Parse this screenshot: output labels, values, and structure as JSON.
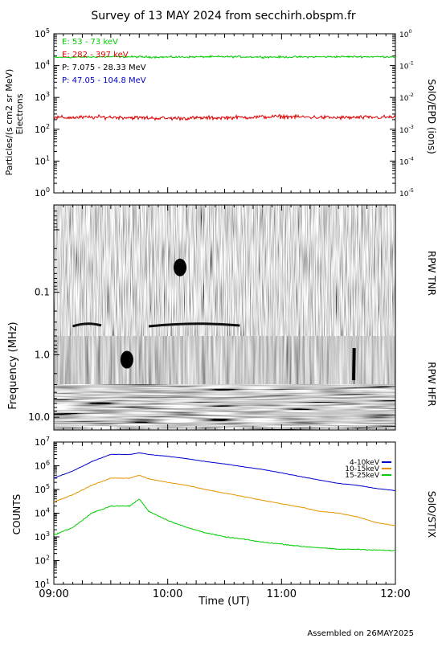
{
  "title": "Survey of 13 MAY 2024 from secchirh.obspm.fr",
  "footer": "Assembled on 26MAY2025",
  "chart_data": [
    {
      "type": "line",
      "panel": "particles",
      "ylabel": "Particles/(s cm2 sr MeV)",
      "ylabel2": "Electrons",
      "right_label": "SolO/EPD (ions)",
      "yscale": "log",
      "ylim": [
        1,
        100000
      ],
      "yticks": [
        "10^0",
        "10^1",
        "10^2",
        "10^3",
        "10^4",
        "10^5"
      ],
      "y2lim": [
        1e-05,
        1
      ],
      "y2ticks": [
        "10^-5",
        "10^-4",
        "10^-3",
        "10^-2",
        "10^-1",
        "10^0"
      ],
      "xlim": [
        "09:00",
        "12:00"
      ],
      "series": [
        {
          "name": "E: 53 - 73 keV",
          "color": "#00cc00",
          "x": [
            "09:00",
            "09:30",
            "10:00",
            "10:30",
            "11:00",
            "11:30",
            "12:00"
          ],
          "values": [
            18000,
            19000,
            18500,
            19000,
            18500,
            19000,
            19000
          ]
        },
        {
          "name": "E: 282 - 397 keV",
          "color": "#dd0000",
          "x": [
            "09:00",
            "09:30",
            "10:00",
            "10:30",
            "11:00",
            "11:30",
            "12:00"
          ],
          "values": [
            230,
            240,
            220,
            230,
            250,
            230,
            240
          ]
        },
        {
          "name": "P: 7.075 - 28.33 MeV",
          "color": "#000000",
          "x": [],
          "values": []
        },
        {
          "name": "P: 47.05 - 104.8 MeV",
          "color": "#0000cc",
          "x": [],
          "values": []
        }
      ]
    },
    {
      "type": "heatmap",
      "panel": "radio",
      "ylabel": "Frequency (MHz)",
      "yscale": "log",
      "ylim": [
        0.004,
        16
      ],
      "yticks": [
        "0.1",
        "1.0",
        "10.0"
      ],
      "xlim": [
        "09:00",
        "12:00"
      ],
      "section_labels": [
        "RPW TNR",
        "RPW HFR"
      ],
      "bursts": [
        {
          "t_start": "09:10",
          "t_end": "09:25",
          "f": 0.33
        },
        {
          "t_start": "09:50",
          "t_end": "10:38",
          "f": 0.33
        },
        {
          "t_start": "10:05",
          "t_end": "10:08",
          "f": 0.04
        },
        {
          "t_start": "09:37",
          "t_end": "09:40",
          "f": 1.2
        },
        {
          "t_start": "11:37",
          "t_end": "11:38",
          "f": 1.5
        }
      ]
    },
    {
      "type": "line",
      "panel": "stix",
      "ylabel": "COUNTS",
      "right_label": "SolO/STIX",
      "xlabel": "Time (UT)",
      "yscale": "log",
      "ylim": [
        10,
        10000000
      ],
      "yticks": [
        "10^1",
        "10^2",
        "10^3",
        "10^4",
        "10^5",
        "10^6",
        "10^7"
      ],
      "xlim": [
        "09:00",
        "12:00"
      ],
      "xticks": [
        "09:00",
        "10:00",
        "11:00",
        "12:00"
      ],
      "series": [
        {
          "name": "4-10keV",
          "color": "#0000cc",
          "x": [
            "09:00",
            "09:10",
            "09:20",
            "09:30",
            "09:40",
            "09:45",
            "09:50",
            "10:00",
            "10:10",
            "10:20",
            "10:30",
            "10:40",
            "10:50",
            "11:00",
            "11:10",
            "11:20",
            "11:30",
            "11:40",
            "11:50",
            "12:00"
          ],
          "values": [
            300000,
            600000,
            1500000,
            3000000,
            3000000,
            3500000,
            3000000,
            2500000,
            2000000,
            1500000,
            1200000,
            900000,
            700000,
            500000,
            350000,
            250000,
            180000,
            150000,
            110000,
            90000
          ]
        },
        {
          "name": "10-15keV",
          "color": "#e59400",
          "x": [
            "09:00",
            "09:10",
            "09:20",
            "09:30",
            "09:40",
            "09:45",
            "09:50",
            "10:00",
            "10:10",
            "10:20",
            "10:30",
            "10:40",
            "10:50",
            "11:00",
            "11:10",
            "11:20",
            "11:30",
            "11:40",
            "11:50",
            "12:00"
          ],
          "values": [
            30000,
            60000,
            150000,
            300000,
            300000,
            400000,
            280000,
            200000,
            150000,
            100000,
            70000,
            50000,
            35000,
            25000,
            18000,
            12000,
            10000,
            7000,
            4000,
            3000
          ]
        },
        {
          "name": "15-25keV",
          "color": "#00cc00",
          "x": [
            "09:00",
            "09:10",
            "09:20",
            "09:30",
            "09:40",
            "09:45",
            "09:50",
            "10:00",
            "10:10",
            "10:20",
            "10:30",
            "10:40",
            "10:50",
            "11:00",
            "11:10",
            "11:20",
            "11:30",
            "11:40",
            "11:50",
            "12:00"
          ],
          "values": [
            1200,
            2500,
            10000,
            20000,
            20000,
            40000,
            12000,
            5000,
            2500,
            1500,
            1000,
            800,
            600,
            500,
            400,
            350,
            300,
            300,
            280,
            260
          ]
        }
      ]
    }
  ]
}
